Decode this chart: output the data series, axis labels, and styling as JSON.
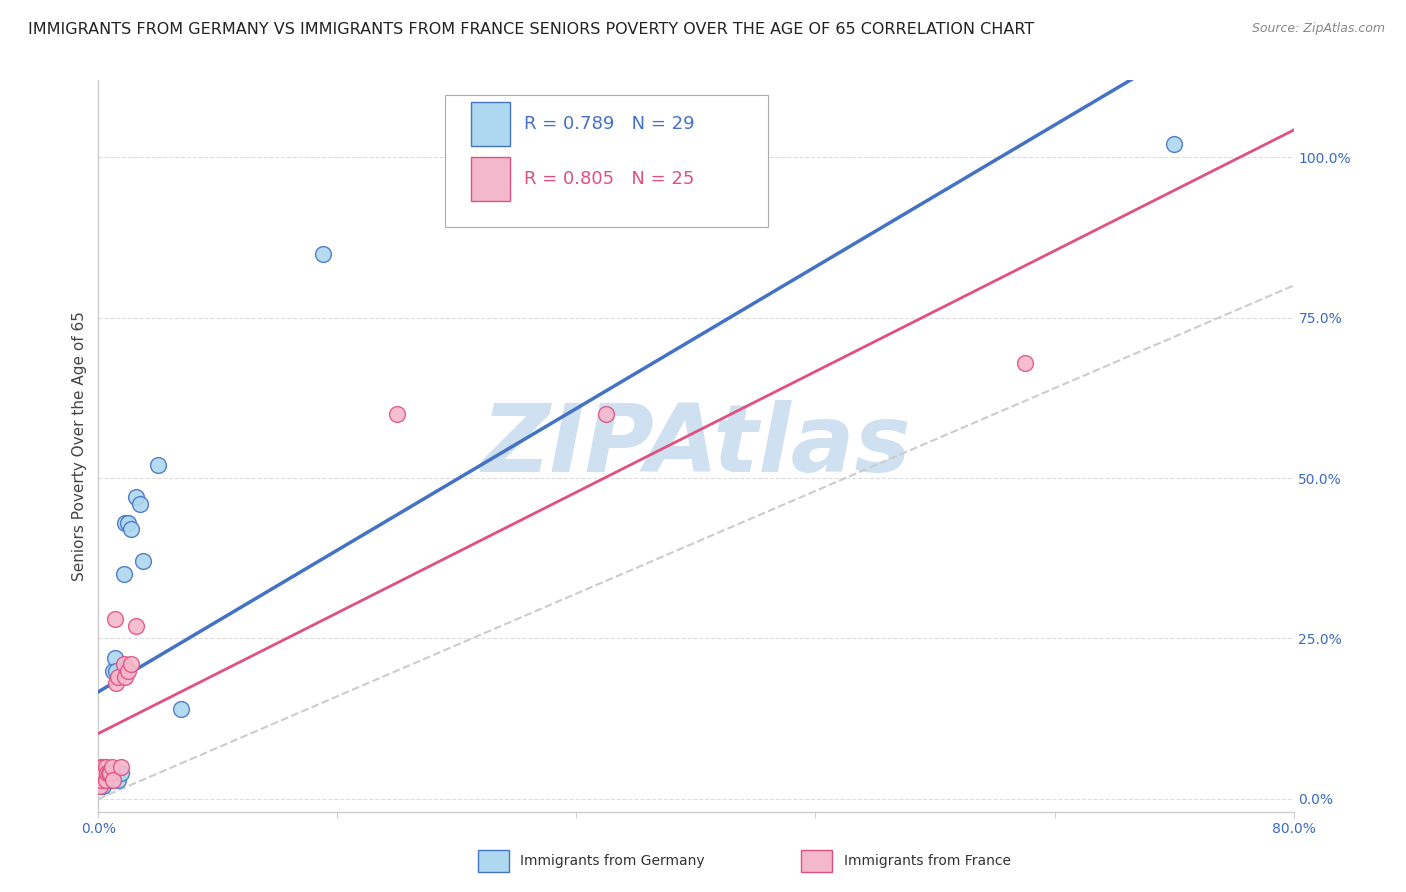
{
  "title": "IMMIGRANTS FROM GERMANY VS IMMIGRANTS FROM FRANCE SENIORS POVERTY OVER THE AGE OF 65 CORRELATION CHART",
  "source": "Source: ZipAtlas.com",
  "ylabel": "Seniors Poverty Over the Age of 65",
  "xlim": [
    0.0,
    0.8
  ],
  "ylim": [
    -0.02,
    1.12
  ],
  "yticks_right": [
    0.0,
    0.25,
    0.5,
    0.75,
    1.0
  ],
  "ytick_right_labels": [
    "0.0%",
    "25.0%",
    "50.0%",
    "75.0%",
    "100.0%"
  ],
  "germany_x": [
    0.001,
    0.002,
    0.002,
    0.003,
    0.003,
    0.004,
    0.004,
    0.005,
    0.005,
    0.006,
    0.007,
    0.008,
    0.009,
    0.01,
    0.011,
    0.012,
    0.013,
    0.015,
    0.017,
    0.018,
    0.02,
    0.022,
    0.025,
    0.028,
    0.03,
    0.04,
    0.055,
    0.15,
    0.72
  ],
  "germany_y": [
    0.03,
    0.02,
    0.03,
    0.02,
    0.04,
    0.03,
    0.03,
    0.04,
    0.03,
    0.03,
    0.03,
    0.04,
    0.04,
    0.2,
    0.22,
    0.2,
    0.03,
    0.04,
    0.35,
    0.43,
    0.43,
    0.42,
    0.47,
    0.46,
    0.37,
    0.52,
    0.14,
    0.85,
    1.02
  ],
  "france_x": [
    0.001,
    0.002,
    0.002,
    0.003,
    0.003,
    0.004,
    0.005,
    0.005,
    0.006,
    0.007,
    0.008,
    0.009,
    0.01,
    0.011,
    0.012,
    0.013,
    0.015,
    0.017,
    0.018,
    0.02,
    0.022,
    0.025,
    0.2,
    0.34,
    0.62
  ],
  "france_y": [
    0.02,
    0.03,
    0.05,
    0.04,
    0.05,
    0.04,
    0.03,
    0.05,
    0.04,
    0.04,
    0.04,
    0.05,
    0.03,
    0.28,
    0.18,
    0.19,
    0.05,
    0.21,
    0.19,
    0.2,
    0.21,
    0.27,
    0.6,
    0.6,
    0.68
  ],
  "germany_color": "#add8f0",
  "france_color": "#f4b8cc",
  "germany_line_color": "#4472c4",
  "france_line_color": "#e05080",
  "germany_R": 0.789,
  "germany_N": 29,
  "france_R": 0.805,
  "france_N": 25,
  "watermark": "ZIPAtlas",
  "watermark_color": "#cfe0f0",
  "bg_color": "#ffffff",
  "grid_color": "#dddddd",
  "title_fontsize": 11.5,
  "axis_label_fontsize": 11,
  "tick_fontsize": 10,
  "legend_fontsize": 13
}
